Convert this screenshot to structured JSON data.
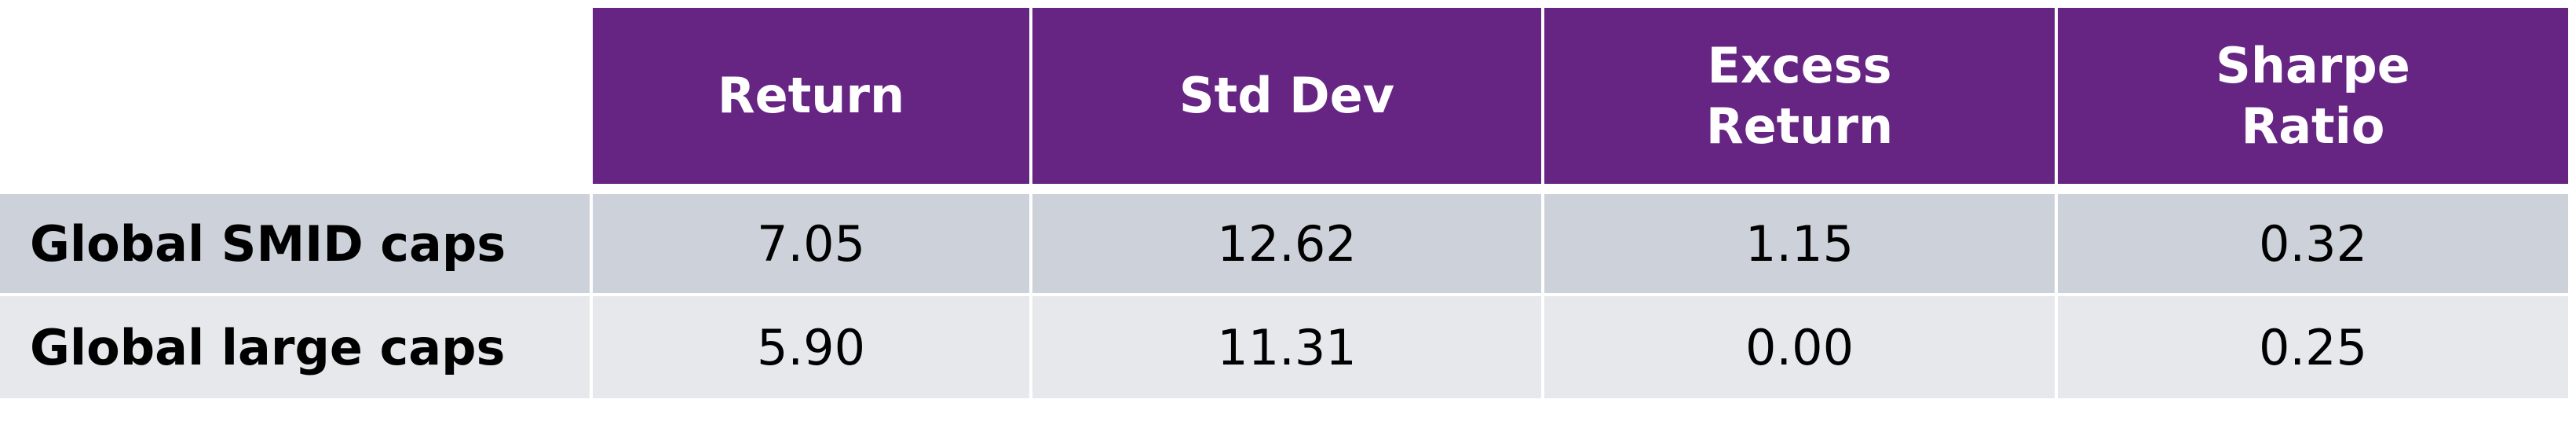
{
  "table": {
    "header": [
      "Return",
      "Std Dev",
      "Excess Return",
      "Sharpe Ratio"
    ],
    "rows": [
      [
        "Global SMID caps",
        "7.05",
        "12.62",
        "1.15",
        "0.32"
      ],
      [
        "Global large caps",
        "5.90",
        "11.31",
        "0.00",
        "0.25"
      ]
    ]
  }
}
